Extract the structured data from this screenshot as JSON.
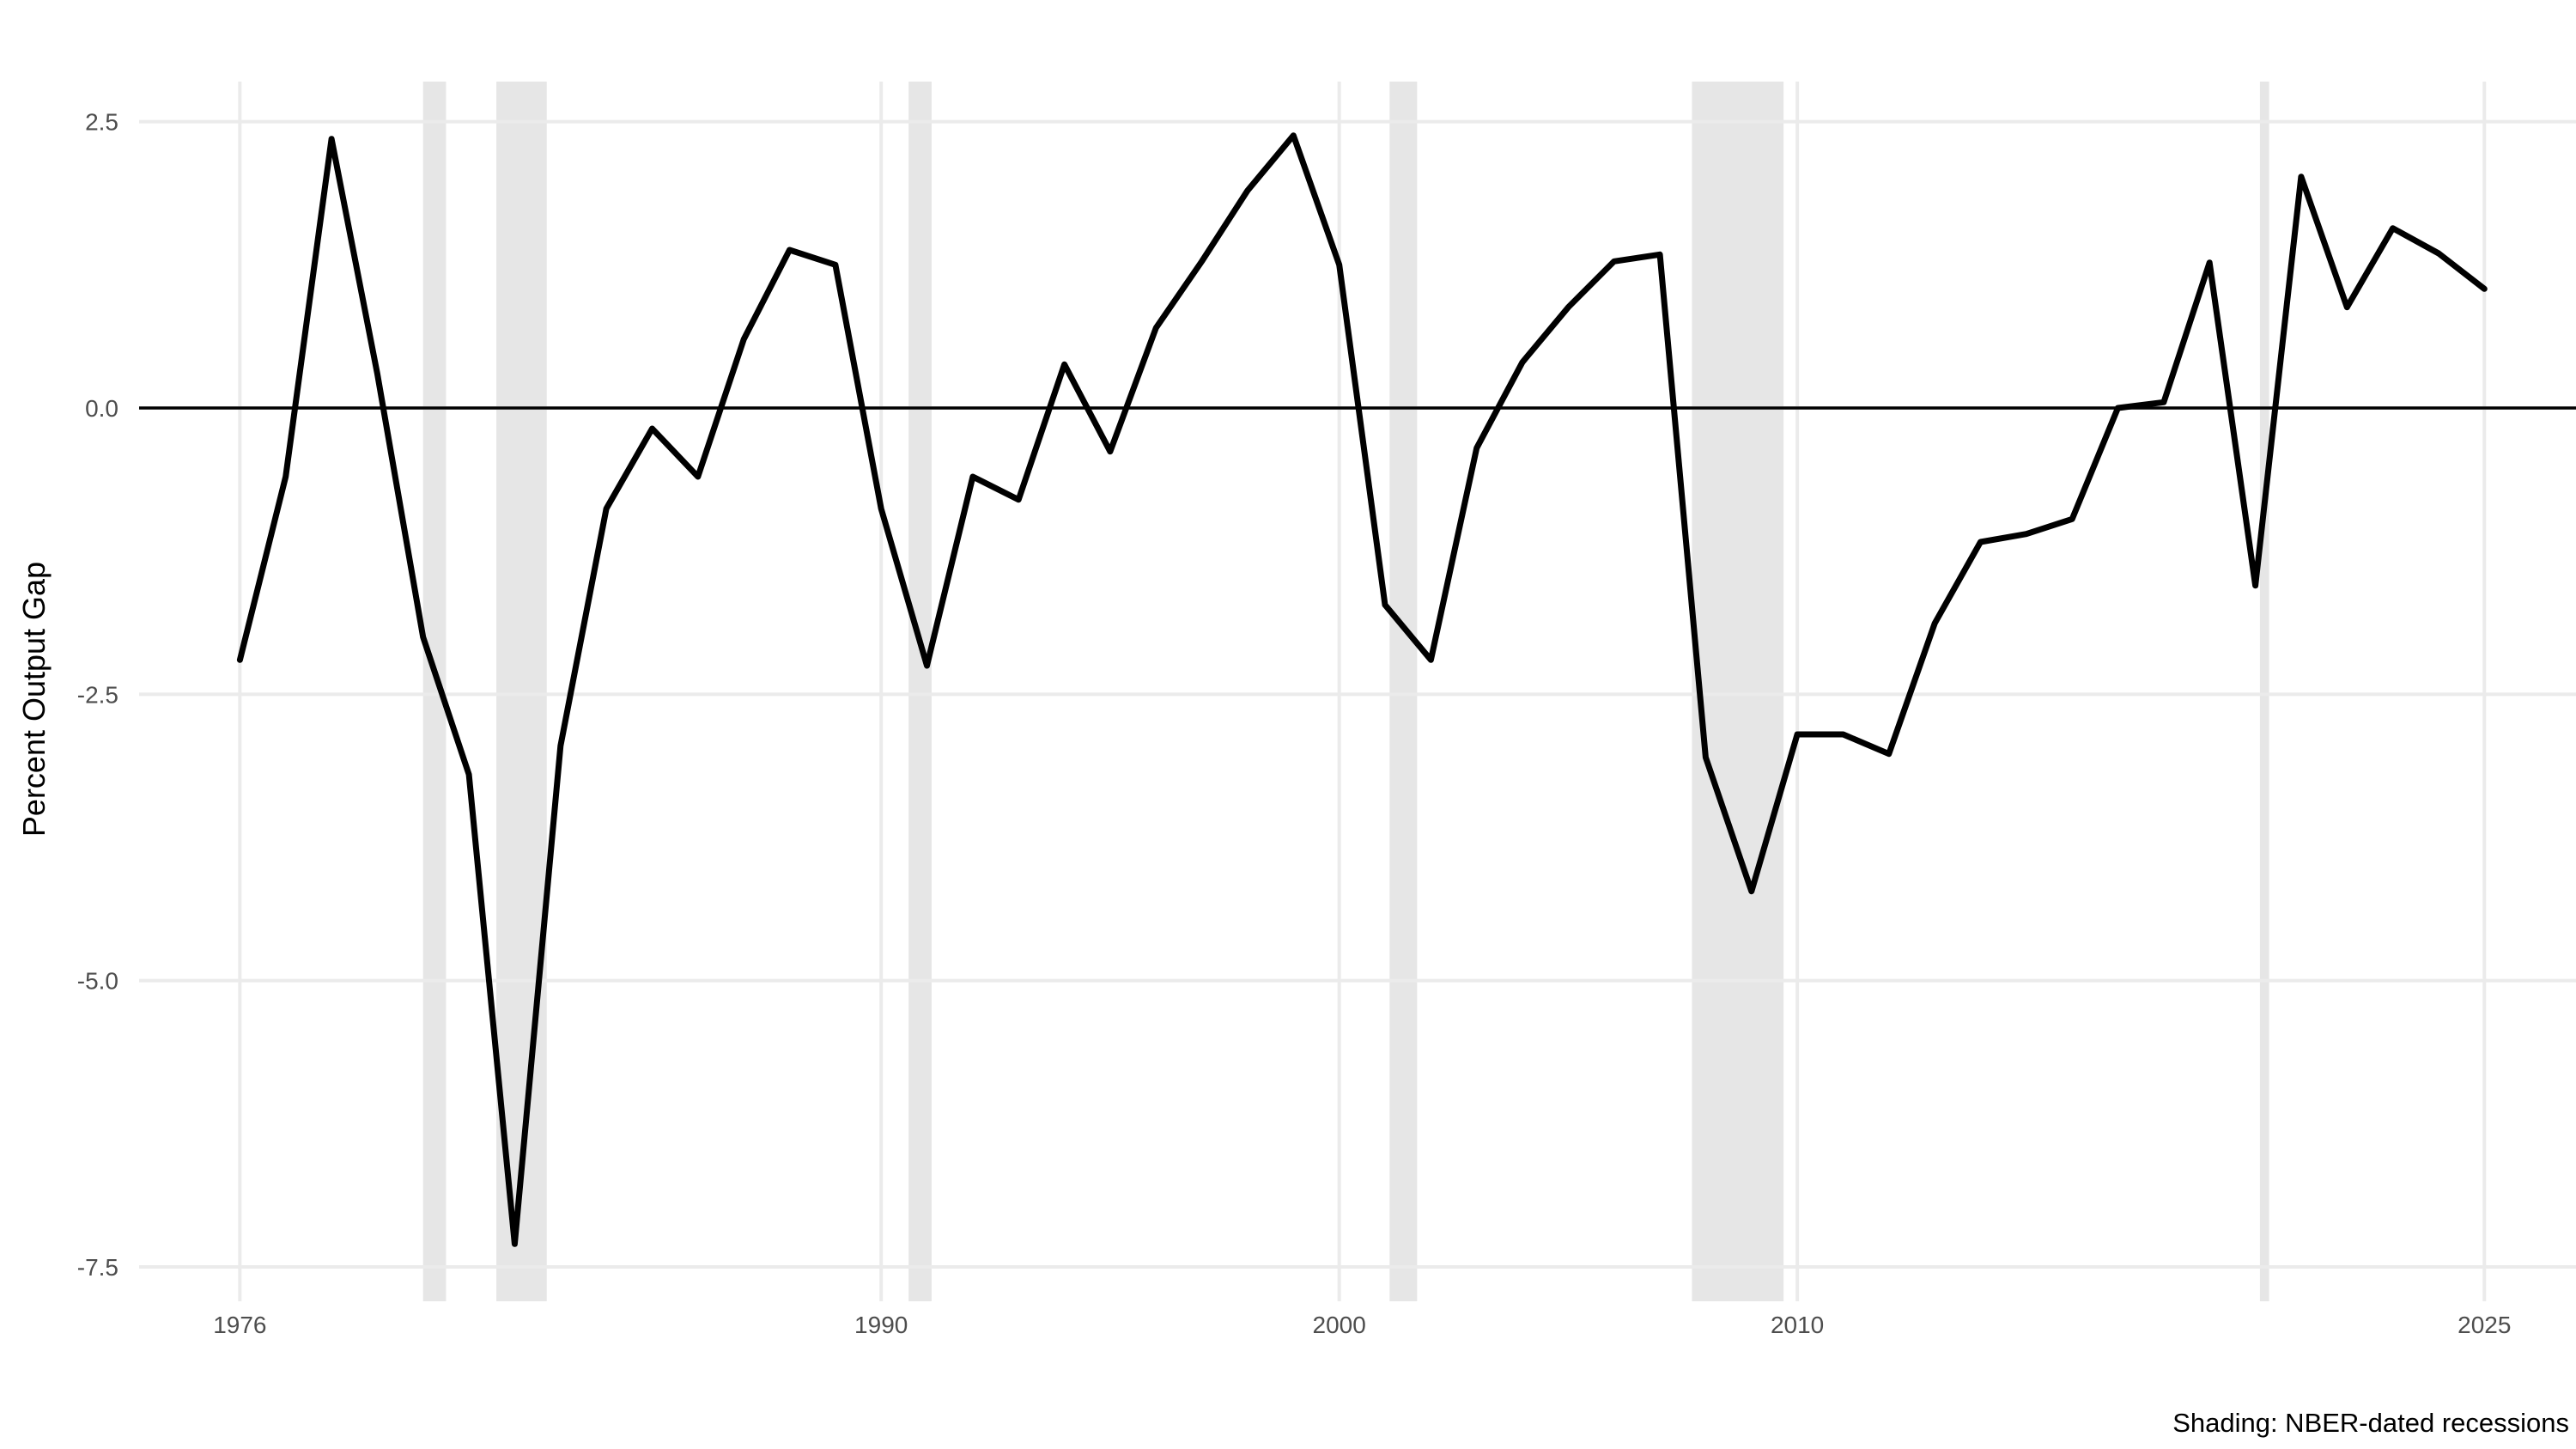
{
  "chart_data": {
    "type": "line",
    "title": "",
    "xlabel": "",
    "ylabel": "Percent Output Gap",
    "caption": "Shading: NBER-dated recessions",
    "xlim": [
      1973.8,
      2027.0
    ],
    "ylim": [
      -7.8,
      2.85
    ],
    "x_ticks": [
      1976,
      1990,
      2000,
      2010,
      2025
    ],
    "y_ticks": [
      {
        "value": 2.5,
        "label": "2.5"
      },
      {
        "value": 0,
        "label": "0.0"
      },
      {
        "value": -2.5,
        "label": "-2.5"
      },
      {
        "value": -5,
        "label": "-5.0"
      },
      {
        "value": -7.5,
        "label": "-7.5"
      }
    ],
    "grid": true,
    "zero_line": true,
    "colors": {
      "line": "#000000",
      "recession": "#e6e6e6",
      "grid": "#ebebeb"
    },
    "recessions": [
      {
        "start": 1980.0,
        "end": 1980.5
      },
      {
        "start": 1981.6,
        "end": 1982.7
      },
      {
        "start": 1990.6,
        "end": 1991.1
      },
      {
        "start": 2001.1,
        "end": 2001.7
      },
      {
        "start": 2007.7,
        "end": 2009.7
      },
      {
        "start": 2020.1,
        "end": 2020.3
      }
    ],
    "series": [
      {
        "x": [
          1976,
          1977,
          1978,
          1979,
          1980,
          1981,
          1982,
          1983,
          1984,
          1985,
          1986,
          1987,
          1988,
          1989,
          1990,
          1991,
          1992,
          1993,
          1994,
          1995,
          1996,
          1997,
          1998,
          1999,
          2000,
          2001,
          2002,
          2003,
          2004,
          2005,
          2006,
          2007,
          2008,
          2009,
          2010,
          2011,
          2012,
          2013,
          2014,
          2015,
          2016,
          2017,
          2018,
          2019,
          2020,
          2021,
          2022,
          2023,
          2024,
          2025
        ],
        "values": [
          -2.2,
          -0.6,
          2.35,
          0.3,
          -2.0,
          -3.2,
          -7.3,
          -2.95,
          -0.88,
          -0.18,
          -0.6,
          0.6,
          1.38,
          1.25,
          -0.88,
          -2.25,
          -0.6,
          -0.8,
          0.38,
          -0.38,
          0.7,
          1.28,
          1.9,
          2.38,
          1.25,
          -1.72,
          -2.2,
          -0.35,
          0.4,
          0.88,
          1.28,
          1.34,
          -3.05,
          -4.22,
          -2.85,
          -2.85,
          -3.02,
          -1.88,
          -1.17,
          -1.1,
          -0.97,
          0.0,
          0.05,
          1.27,
          -1.55,
          2.02,
          0.88,
          1.57,
          1.35,
          1.04
        ]
      }
    ]
  }
}
